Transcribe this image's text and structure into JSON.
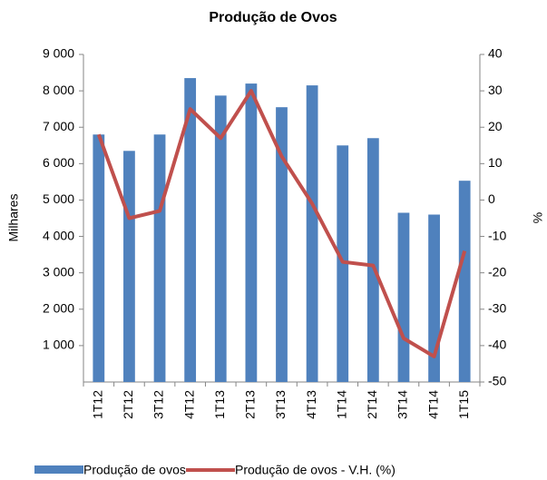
{
  "chart_data": {
    "type": "bar-line",
    "title": "Produção de Ovos",
    "y_label": "Milhares",
    "y2_label": "%",
    "categories": [
      "1T12",
      "2T12",
      "3T12",
      "4T12",
      "1T13",
      "2T13",
      "3T13",
      "4T13",
      "1T14",
      "2T14",
      "3T14",
      "4T14",
      "1T15"
    ],
    "series": [
      {
        "name": "Produção de ovos",
        "type": "bar",
        "color": "#4f81bd",
        "values": [
          6800,
          6350,
          6800,
          8350,
          7870,
          8200,
          7550,
          8150,
          6500,
          6700,
          4650,
          4600,
          5530
        ]
      },
      {
        "name": "Produção de ovos - V.H. (%)",
        "type": "line",
        "axis": "y2",
        "color": "#c0504d",
        "values": [
          18,
          -5,
          -3,
          25,
          17,
          30,
          12,
          -1,
          -17,
          -18,
          -38,
          -43,
          -14
        ]
      }
    ],
    "ylim": [
      0,
      9000
    ],
    "yticks": [
      {
        "value": 1000,
        "label": "1 000"
      },
      {
        "value": 2000,
        "label": "2 000"
      },
      {
        "value": 3000,
        "label": "3 000"
      },
      {
        "value": 4000,
        "label": "4 000"
      },
      {
        "value": 5000,
        "label": "5 000"
      },
      {
        "value": 6000,
        "label": "6 000"
      },
      {
        "value": 7000,
        "label": "7 000"
      },
      {
        "value": 8000,
        "label": "8 000"
      },
      {
        "value": 9000,
        "label": "9 000"
      }
    ],
    "y2lim": [
      -50,
      40
    ],
    "y2ticks": [
      -50,
      -40,
      -30,
      -20,
      -10,
      0,
      10,
      20,
      30,
      40
    ]
  }
}
